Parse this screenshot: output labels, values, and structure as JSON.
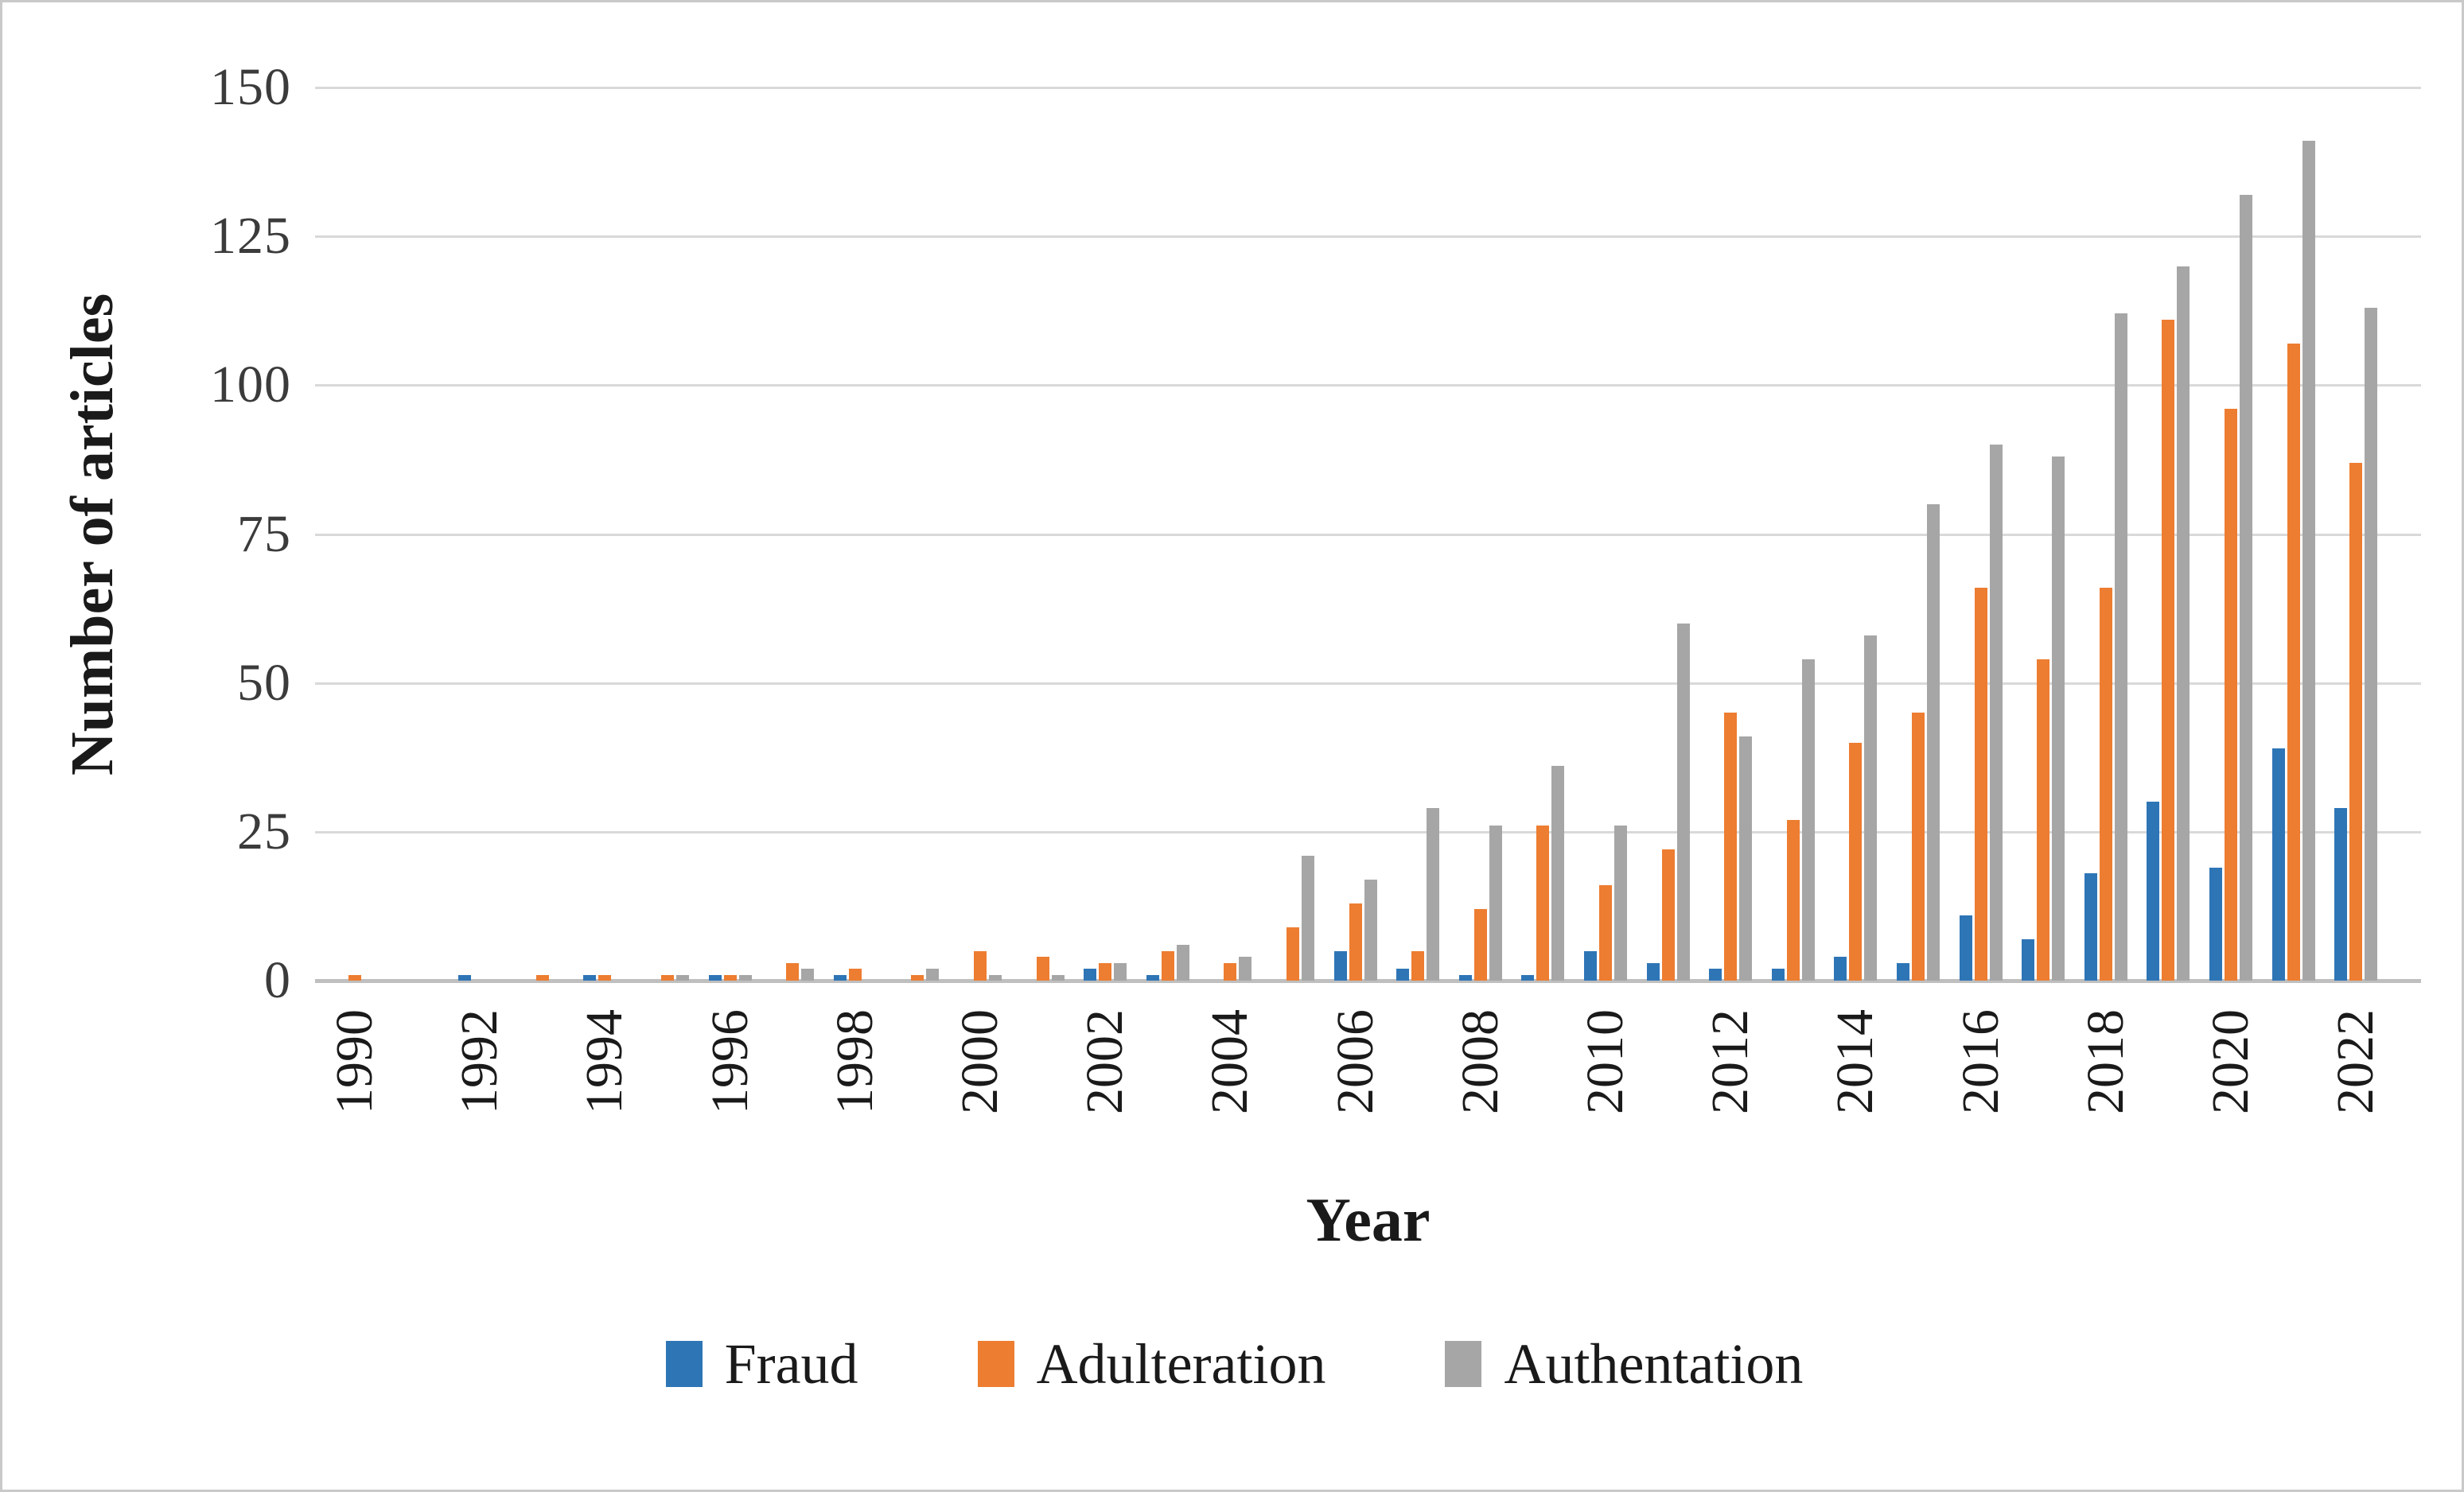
{
  "figure": {
    "background": "#FFFFFF",
    "border_color": "#C9C9C9"
  },
  "chart_data": {
    "type": "bar",
    "title": "",
    "xlabel": "Year",
    "ylabel": "Number of articles",
    "ylim": [
      0,
      150
    ],
    "yticks": [
      0,
      25,
      50,
      75,
      100,
      125,
      150
    ],
    "grid": true,
    "legend_position": "bottom",
    "categories": [
      1990,
      1991,
      1992,
      1993,
      1994,
      1995,
      1996,
      1997,
      1998,
      1999,
      2000,
      2001,
      2002,
      2003,
      2004,
      2005,
      2006,
      2007,
      2008,
      2009,
      2010,
      2011,
      2012,
      2013,
      2014,
      2015,
      2016,
      2017,
      2018,
      2019,
      2020,
      2021,
      2022
    ],
    "xtick_labels": [
      "1990",
      "1992",
      "1994",
      "1996",
      "1998",
      "2000",
      "2002",
      "2004",
      "2006",
      "2008",
      "2010",
      "2012",
      "2014",
      "2016",
      "2018",
      "2020",
      "2022"
    ],
    "series": [
      {
        "name": "Fraud",
        "color": "#2E75B6",
        "values": [
          0,
          0,
          1,
          0,
          1,
          0,
          1,
          0,
          1,
          0,
          0,
          0,
          2,
          1,
          0,
          0,
          5,
          2,
          1,
          1,
          5,
          3,
          2,
          2,
          4,
          3,
          11,
          7,
          18,
          30,
          19,
          39,
          29
        ]
      },
      {
        "name": "Adulteration",
        "color": "#ED7D31",
        "values": [
          1,
          0,
          0,
          1,
          1,
          1,
          1,
          3,
          2,
          1,
          5,
          4,
          3,
          5,
          3,
          9,
          13,
          5,
          12,
          26,
          16,
          22,
          45,
          27,
          40,
          45,
          66,
          54,
          66,
          111,
          96,
          107,
          87
        ]
      },
      {
        "name": "Authentation",
        "color": "#A6A6A6",
        "values": [
          0,
          0,
          0,
          0,
          0,
          1,
          1,
          2,
          0,
          2,
          1,
          1,
          3,
          6,
          4,
          21,
          17,
          29,
          26,
          36,
          26,
          60,
          41,
          54,
          58,
          80,
          90,
          88,
          112,
          120,
          132,
          141,
          113
        ]
      }
    ]
  }
}
